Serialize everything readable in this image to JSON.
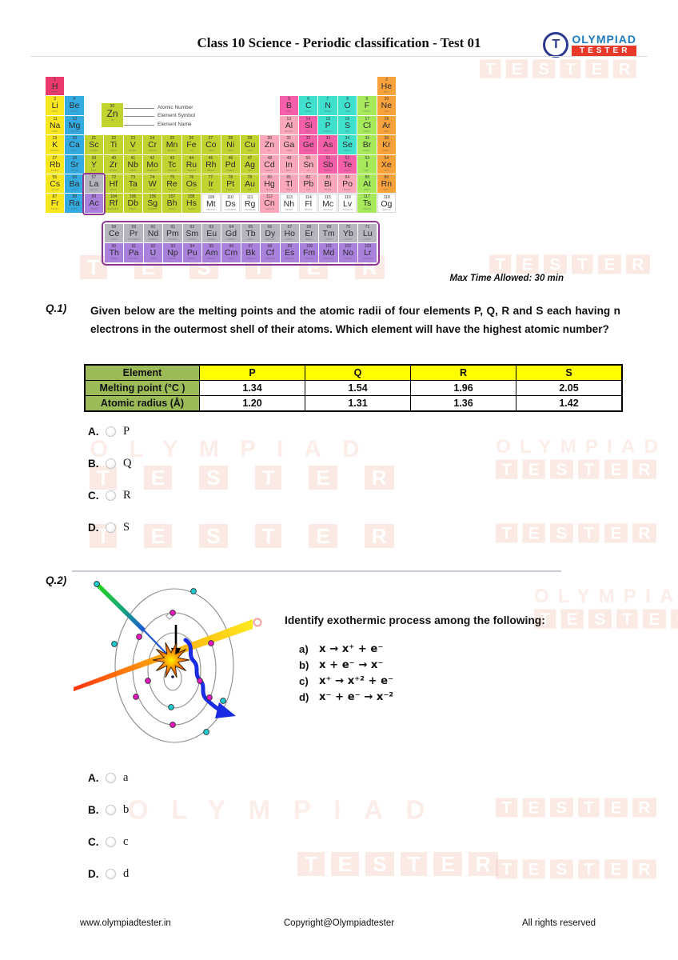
{
  "header": {
    "title": "Class 10 Science - Periodic classification - Test 01",
    "logo": {
      "icon_letter": "T",
      "brand_top": "OLYMPIAD",
      "brand_bottom": "TESTER",
      "blue": "#1E7BC0",
      "red": "#E8392B",
      "circle_blue": "#2B3990"
    }
  },
  "watermark": {
    "line1": "OLYMPIAD",
    "line2": "TESTER"
  },
  "max_time": "Max Time Allowed: 30 min",
  "periodic_table": {
    "legend": {
      "atomic_number": "30",
      "symbol": "Zn",
      "name": "Zinc",
      "labels": [
        "Atomic Number",
        "Element Symbol",
        "Element Name"
      ]
    },
    "colors": {
      "h": "#E93A6B",
      "alkali": "#F8E71E",
      "alkaline": "#34ABE0",
      "trans": "#C2D22E",
      "post": "#FCA8BA",
      "metalloid": "#F55FA9",
      "nonmetal": "#3FE0CE",
      "halogen": "#A6E95B",
      "noble": "#F8A23B",
      "lanth": "#B5B5BF",
      "act": "#A980DC",
      "unknown": "#FFFFFF",
      "fblock_border": "#8F3996"
    },
    "rows": [
      [
        [
          1,
          "H",
          "h",
          "Hydrogen",
          1
        ],
        [
          2,
          "He",
          "noble",
          "Helium",
          18
        ]
      ],
      [
        [
          3,
          "Li",
          "alkali",
          "Lithium",
          1
        ],
        [
          4,
          "Be",
          "alkaline",
          "Beryllium",
          2
        ],
        [
          5,
          "B",
          "metalloid",
          "Boron",
          13
        ],
        [
          6,
          "C",
          "nonmetal",
          "Carbon",
          14
        ],
        [
          7,
          "N",
          "nonmetal",
          "Nitrogen",
          15
        ],
        [
          8,
          "O",
          "nonmetal",
          "Oxygen",
          16
        ],
        [
          9,
          "F",
          "halogen",
          "Fluorine",
          17
        ],
        [
          10,
          "Ne",
          "noble",
          "Neon",
          18
        ]
      ],
      [
        [
          11,
          "Na",
          "alkali",
          "Sodium",
          1
        ],
        [
          12,
          "Mg",
          "alkaline",
          "Magnesium",
          2
        ],
        [
          13,
          "Al",
          "post",
          "Aluminium",
          13
        ],
        [
          14,
          "Si",
          "metalloid",
          "Silicon",
          14
        ],
        [
          15,
          "P",
          "nonmetal",
          "Phosphorus",
          15
        ],
        [
          16,
          "S",
          "nonmetal",
          "Sulfur",
          16
        ],
        [
          17,
          "Cl",
          "halogen",
          "Chlorine",
          17
        ],
        [
          18,
          "Ar",
          "noble",
          "Argon",
          18
        ]
      ],
      [
        [
          19,
          "K",
          "alkali",
          "Potassium",
          1
        ],
        [
          20,
          "Ca",
          "alkaline",
          "Calcium",
          2
        ],
        [
          21,
          "Sc",
          "trans",
          "Scandium",
          3
        ],
        [
          22,
          "Ti",
          "trans",
          "Titanium",
          4
        ],
        [
          23,
          "V",
          "trans",
          "Vanadium",
          5
        ],
        [
          24,
          "Cr",
          "trans",
          "Chromium",
          6
        ],
        [
          25,
          "Mn",
          "trans",
          "Manganese",
          7
        ],
        [
          26,
          "Fe",
          "trans",
          "Iron",
          8
        ],
        [
          27,
          "Co",
          "trans",
          "Cobalt",
          9
        ],
        [
          28,
          "Ni",
          "trans",
          "Nickel",
          10
        ],
        [
          29,
          "Cu",
          "trans",
          "Copper",
          11
        ],
        [
          30,
          "Zn",
          "post",
          "Zinc",
          12
        ],
        [
          31,
          "Ga",
          "post",
          "Gallium",
          13
        ],
        [
          32,
          "Ge",
          "metalloid",
          "Germanium",
          14
        ],
        [
          33,
          "As",
          "metalloid",
          "Arsenic",
          15
        ],
        [
          34,
          "Se",
          "nonmetal",
          "Selenium",
          16
        ],
        [
          35,
          "Br",
          "halogen",
          "Bromine",
          17
        ],
        [
          36,
          "Kr",
          "noble",
          "Krypton",
          18
        ]
      ],
      [
        [
          37,
          "Rb",
          "alkali",
          "Rubidium",
          1
        ],
        [
          38,
          "Sr",
          "alkaline",
          "Strontium",
          2
        ],
        [
          39,
          "Y",
          "trans",
          "Yttrium",
          3
        ],
        [
          40,
          "Zr",
          "trans",
          "Zirconium",
          4
        ],
        [
          41,
          "Nb",
          "trans",
          "Niobium",
          5
        ],
        [
          42,
          "Mo",
          "trans",
          "Molybdenum",
          6
        ],
        [
          43,
          "Tc",
          "trans",
          "Technetium",
          7
        ],
        [
          44,
          "Ru",
          "trans",
          "Ruthenium",
          8
        ],
        [
          45,
          "Rh",
          "trans",
          "Rhodium",
          9
        ],
        [
          46,
          "Pd",
          "trans",
          "Palladium",
          10
        ],
        [
          47,
          "Ag",
          "trans",
          "Silver",
          11
        ],
        [
          48,
          "Cd",
          "post",
          "Cadmium",
          12
        ],
        [
          49,
          "In",
          "post",
          "Indium",
          13
        ],
        [
          50,
          "Sn",
          "post",
          "Tin",
          14
        ],
        [
          51,
          "Sb",
          "metalloid",
          "Antimony",
          15
        ],
        [
          52,
          "Te",
          "metalloid",
          "Tellurium",
          16
        ],
        [
          53,
          "I",
          "halogen",
          "Iodine",
          17
        ],
        [
          54,
          "Xe",
          "noble",
          "Xenon",
          18
        ]
      ],
      [
        [
          55,
          "Cs",
          "alkali",
          "Caesium",
          1
        ],
        [
          56,
          "Ba",
          "alkaline",
          "Barium",
          2
        ],
        [
          57,
          "La",
          "lanth",
          "Lanthanum",
          3
        ],
        [
          72,
          "Hf",
          "trans",
          "Hafnium",
          4
        ],
        [
          73,
          "Ta",
          "trans",
          "Tantalum",
          5
        ],
        [
          74,
          "W",
          "trans",
          "Tungsten",
          6
        ],
        [
          75,
          "Re",
          "trans",
          "Rhenium",
          7
        ],
        [
          76,
          "Os",
          "trans",
          "Osmium",
          8
        ],
        [
          77,
          "Ir",
          "trans",
          "Iridium",
          9
        ],
        [
          78,
          "Pt",
          "trans",
          "Platinum",
          10
        ],
        [
          79,
          "Au",
          "trans",
          "Gold",
          11
        ],
        [
          80,
          "Hg",
          "post",
          "Mercury",
          12
        ],
        [
          81,
          "Tl",
          "post",
          "Thallium",
          13
        ],
        [
          82,
          "Pb",
          "post",
          "Lead",
          14
        ],
        [
          83,
          "Bi",
          "post",
          "Bismuth",
          15
        ],
        [
          84,
          "Po",
          "post",
          "Polonium",
          16
        ],
        [
          85,
          "At",
          "halogen",
          "Astatine",
          17
        ],
        [
          86,
          "Rn",
          "noble",
          "Radon",
          18
        ]
      ],
      [
        [
          87,
          "Fr",
          "alkali",
          "Francium",
          1
        ],
        [
          88,
          "Ra",
          "alkaline",
          "Radium",
          2
        ],
        [
          89,
          "Ac",
          "act",
          "Actinium",
          3
        ],
        [
          104,
          "Rf",
          "trans",
          "Rutherfordium",
          4
        ],
        [
          105,
          "Db",
          "trans",
          "Dubnium",
          5
        ],
        [
          106,
          "Sg",
          "trans",
          "Seaborgium",
          6
        ],
        [
          107,
          "Bh",
          "trans",
          "Bohrium",
          7
        ],
        [
          108,
          "Hs",
          "trans",
          "Hassium",
          8
        ],
        [
          109,
          "Mt",
          "unknown",
          "Meitnerium",
          9
        ],
        [
          110,
          "Ds",
          "unknown",
          "Darmstadtium",
          10
        ],
        [
          111,
          "Rg",
          "unknown",
          "Roentgenium",
          11
        ],
        [
          112,
          "Cn",
          "post",
          "Copernicium",
          12
        ],
        [
          113,
          "Nh",
          "unknown",
          "Nihonium",
          13
        ],
        [
          114,
          "Fl",
          "unknown",
          "Flerovium",
          14
        ],
        [
          115,
          "Mc",
          "unknown",
          "Moscovium",
          15
        ],
        [
          116,
          "Lv",
          "unknown",
          "Livermorium",
          16
        ],
        [
          117,
          "Ts",
          "halogen",
          "Tennessine",
          17
        ],
        [
          118,
          "Og",
          "unknown",
          "Oganesson",
          18
        ]
      ]
    ],
    "fblock": [
      [
        [
          58,
          "Ce",
          "lanth",
          "Cerium",
          1
        ],
        [
          59,
          "Pr",
          "lanth",
          "Praseodymium",
          2
        ],
        [
          60,
          "Nd",
          "lanth",
          "Neodymium",
          3
        ],
        [
          61,
          "Pm",
          "lanth",
          "Promethium",
          4
        ],
        [
          62,
          "Sm",
          "lanth",
          "Samarium",
          5
        ],
        [
          63,
          "Eu",
          "lanth",
          "Europium",
          6
        ],
        [
          64,
          "Gd",
          "lanth",
          "Gadolinium",
          7
        ],
        [
          65,
          "Tb",
          "lanth",
          "Terbium",
          8
        ],
        [
          66,
          "Dy",
          "lanth",
          "Dysprosium",
          9
        ],
        [
          67,
          "Ho",
          "lanth",
          "Holmium",
          10
        ],
        [
          68,
          "Er",
          "lanth",
          "Erbium",
          11
        ],
        [
          69,
          "Tm",
          "lanth",
          "Thulium",
          12
        ],
        [
          70,
          "Yb",
          "lanth",
          "Ytterbium",
          13
        ],
        [
          71,
          "Lu",
          "lanth",
          "Lutetium",
          14
        ]
      ],
      [
        [
          90,
          "Th",
          "act",
          "Thorium",
          1
        ],
        [
          91,
          "Pa",
          "act",
          "Protactinium",
          2
        ],
        [
          92,
          "U",
          "act",
          "Uranium",
          3
        ],
        [
          93,
          "Np",
          "act",
          "Neptunium",
          4
        ],
        [
          94,
          "Pu",
          "act",
          "Plutonium",
          5
        ],
        [
          95,
          "Am",
          "act",
          "Americium",
          6
        ],
        [
          96,
          "Cm",
          "act",
          "Curium",
          7
        ],
        [
          97,
          "Bk",
          "act",
          "Berkelium",
          8
        ],
        [
          98,
          "Cf",
          "act",
          "Californium",
          9
        ],
        [
          99,
          "Es",
          "act",
          "Einsteinium",
          10
        ],
        [
          100,
          "Fm",
          "act",
          "Fermium",
          11
        ],
        [
          101,
          "Md",
          "act",
          "Mendelevium",
          12
        ],
        [
          102,
          "No",
          "act",
          "Nobelium",
          13
        ],
        [
          103,
          "Lr",
          "act",
          "Lawrencium",
          14
        ]
      ]
    ]
  },
  "q1": {
    "label": "Q.1)",
    "text": "Given below are the melting points and the atomic radii of four elements P, Q, R and S each having n electrons in the outermost shell of their atoms. Which element will have the highest atomic number?",
    "table": {
      "header": [
        "Element",
        "P",
        "Q",
        "R",
        "S"
      ],
      "rows": [
        {
          "label": "Melting point (°C )",
          "values": [
            "1.34",
            "1.54",
            "1.96",
            "2.05"
          ]
        },
        {
          "label": "Atomic radius (Å)",
          "values": [
            "1.20",
            "1.31",
            "1.36",
            "1.42"
          ]
        }
      ],
      "green": "#9BBB59",
      "yellow": "#FFFF00"
    },
    "options": [
      {
        "key": "A.",
        "text": "P"
      },
      {
        "key": "B.",
        "text": "Q"
      },
      {
        "key": "C.",
        "text": "R"
      },
      {
        "key": "D.",
        "text": "S"
      }
    ]
  },
  "q2": {
    "label": "Q.2)",
    "question": "Identify exothermic process among the following:",
    "choices": [
      {
        "key": "a)",
        "formula": "x → x⁺ + e⁻"
      },
      {
        "key": "b)",
        "formula": "x + e⁻ → x⁻"
      },
      {
        "key": "c)",
        "formula": "x⁺ → x⁺² + e⁻"
      },
      {
        "key": "d)",
        "formula": "x⁻ + e⁻ → x⁻²"
      }
    ],
    "options": [
      {
        "key": "A.",
        "text": "a"
      },
      {
        "key": "B.",
        "text": "b"
      },
      {
        "key": "C.",
        "text": "c"
      },
      {
        "key": "D.",
        "text": "d"
      }
    ]
  },
  "footer": {
    "left": "www.olympiadtester.in",
    "center": "Copyright@Olympiadtester",
    "right": "All rights reserved"
  }
}
